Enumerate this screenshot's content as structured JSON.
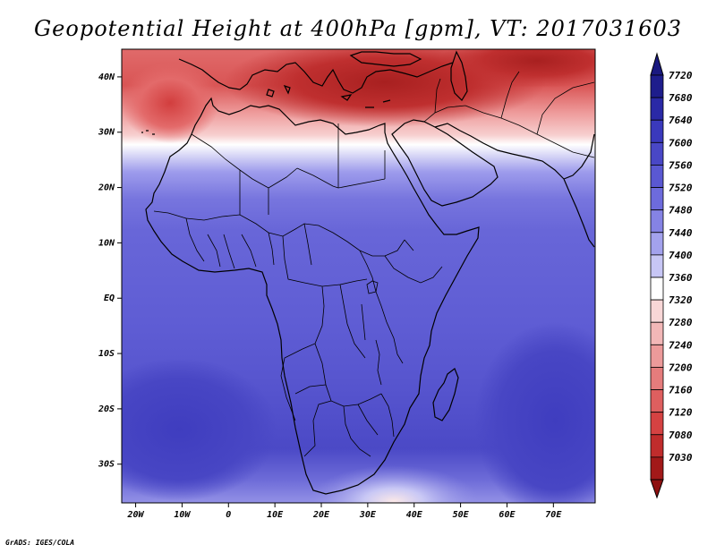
{
  "title": "Geopotential Height at 400hPa [gpm], VT: 2017031603",
  "credit": "GrADS: IGES/COLA",
  "map": {
    "variable": "Geopotential Height at 400hPa",
    "units": "gpm",
    "valid_time": "2017031603",
    "region": "Africa",
    "lon_range": [
      -23,
      79
    ],
    "lat_range": [
      -37,
      45
    ],
    "lat_ticks": [
      {
        "value": 40,
        "label": "40N"
      },
      {
        "value": 30,
        "label": "30N"
      },
      {
        "value": 20,
        "label": "20N"
      },
      {
        "value": 10,
        "label": "10N"
      },
      {
        "value": 0,
        "label": "EQ"
      },
      {
        "value": -10,
        "label": "10S"
      },
      {
        "value": -20,
        "label": "20S"
      },
      {
        "value": -30,
        "label": "30S"
      }
    ],
    "lon_ticks": [
      {
        "value": -20,
        "label": "20W"
      },
      {
        "value": -10,
        "label": "10W"
      },
      {
        "value": 0,
        "label": "0"
      },
      {
        "value": 10,
        "label": "10E"
      },
      {
        "value": 20,
        "label": "20E"
      },
      {
        "value": 30,
        "label": "30E"
      },
      {
        "value": 40,
        "label": "40E"
      },
      {
        "value": 50,
        "label": "50E"
      },
      {
        "value": 60,
        "label": "60E"
      },
      {
        "value": 70,
        "label": "70E"
      }
    ]
  },
  "colorbar": {
    "levels": [
      {
        "value": "7720",
        "color": "#1e1d8c"
      },
      {
        "value": "7680",
        "color": "#2a29a6"
      },
      {
        "value": "7640",
        "color": "#3a39bc"
      },
      {
        "value": "7600",
        "color": "#4947c6"
      },
      {
        "value": "7560",
        "color": "#5a58d2"
      },
      {
        "value": "7520",
        "color": "#6d6bdc"
      },
      {
        "value": "7480",
        "color": "#8583e4"
      },
      {
        "value": "7440",
        "color": "#a3a2ed"
      },
      {
        "value": "7400",
        "color": "#c7c6f5"
      },
      {
        "value": "7360",
        "color": "#ffffff"
      },
      {
        "value": "7320",
        "color": "#f8d7d7"
      },
      {
        "value": "7280",
        "color": "#f2b7b7"
      },
      {
        "value": "7240",
        "color": "#ec9a9a"
      },
      {
        "value": "7200",
        "color": "#e57c7c"
      },
      {
        "value": "7160",
        "color": "#de5f5f"
      },
      {
        "value": "7120",
        "color": "#d54242"
      },
      {
        "value": "7080",
        "color": "#c02c2c"
      },
      {
        "value": "7030",
        "color": "#a21919"
      }
    ],
    "top_arrow_color": "#1a1980",
    "bottom_arrow_color": "#8e1010"
  }
}
